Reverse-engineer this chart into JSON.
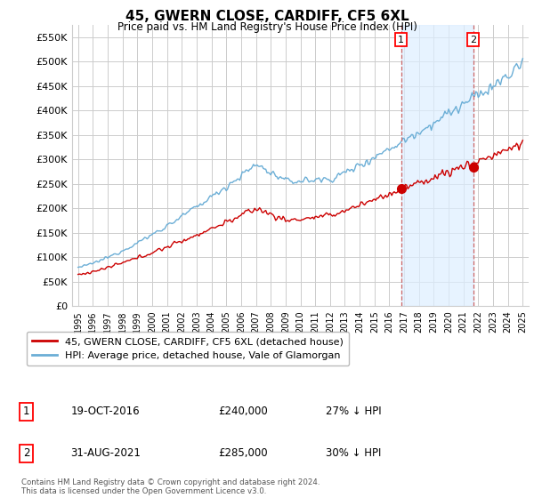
{
  "title": "45, GWERN CLOSE, CARDIFF, CF5 6XL",
  "subtitle": "Price paid vs. HM Land Registry's House Price Index (HPI)",
  "legend_line1": "45, GWERN CLOSE, CARDIFF, CF5 6XL (detached house)",
  "legend_line2": "HPI: Average price, detached house, Vale of Glamorgan",
  "sale1_date": "19-OCT-2016",
  "sale1_price": "£240,000",
  "sale1_hpi": "27% ↓ HPI",
  "sale1_x": 2016.8,
  "sale1_y": 240000,
  "sale2_date": "31-AUG-2021",
  "sale2_price": "£285,000",
  "sale2_hpi": "30% ↓ HPI",
  "sale2_x": 2021.66,
  "sale2_y": 285000,
  "ylim": [
    0,
    575000
  ],
  "xlim": [
    1994.6,
    2025.4
  ],
  "yticks": [
    0,
    50000,
    100000,
    150000,
    200000,
    250000,
    300000,
    350000,
    400000,
    450000,
    500000,
    550000
  ],
  "ytick_labels": [
    "£0",
    "£50K",
    "£100K",
    "£150K",
    "£200K",
    "£250K",
    "£300K",
    "£350K",
    "£400K",
    "£450K",
    "£500K",
    "£550K"
  ],
  "hpi_color": "#6baed6",
  "price_color": "#cc0000",
  "shade_color": "#ddeeff",
  "background_color": "#ffffff",
  "grid_color": "#cccccc",
  "vline_color": "#cc6666",
  "footnote": "Contains HM Land Registry data © Crown copyright and database right 2024.\nThis data is licensed under the Open Government Licence v3.0."
}
